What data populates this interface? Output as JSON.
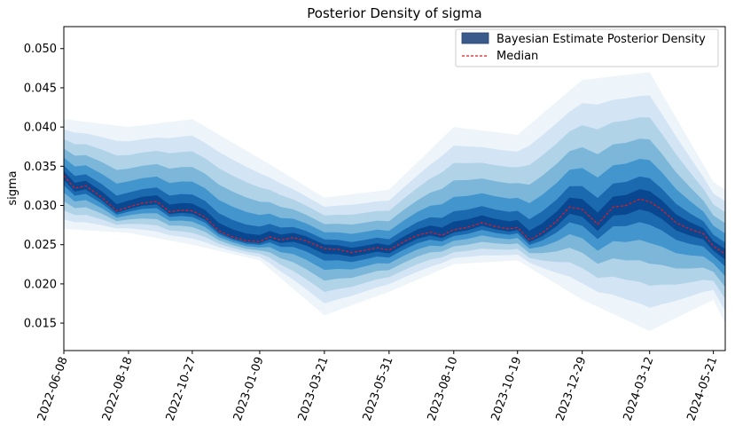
{
  "chart_data": {
    "type": "area",
    "title": "Posterior Density of sigma",
    "xlabel": "",
    "ylabel": "sigma",
    "x_tick_labels": [
      "2022-06-08",
      "2022-08-18",
      "2022-10-27",
      "2023-01-09",
      "2023-03-21",
      "2023-05-31",
      "2023-08-10",
      "2023-10-19",
      "2023-12-29",
      "2024-03-12",
      "2024-05-21"
    ],
    "x_range": [
      "2022-06-08",
      "2024-06-03"
    ],
    "y_ticks": [
      "0.015",
      "0.020",
      "0.025",
      "0.030",
      "0.035",
      "0.040",
      "0.045",
      "0.050"
    ],
    "y_tick_values": [
      0.015,
      0.02,
      0.025,
      0.03,
      0.035,
      0.04,
      0.045,
      0.05
    ],
    "ylim": [
      0.0115,
      0.0528
    ],
    "grid": false,
    "legend_position": "top-right",
    "legend": [
      {
        "label": "Bayesian Estimate Posterior Density",
        "kind": "patch",
        "color": "#3a5a8c"
      },
      {
        "label": "Median",
        "kind": "dashed-line",
        "color": "#e8181e"
      }
    ],
    "series": [
      {
        "name": "Median",
        "x": [
          "2022-06-08",
          "2022-06-20",
          "2022-07-02",
          "2022-07-20",
          "2022-08-05",
          "2022-08-18",
          "2022-09-02",
          "2022-09-18",
          "2022-10-02",
          "2022-10-15",
          "2022-10-27",
          "2022-11-10",
          "2022-11-25",
          "2022-12-10",
          "2022-12-25",
          "2023-01-09",
          "2023-01-20",
          "2023-02-01",
          "2023-02-15",
          "2023-03-01",
          "2023-03-21",
          "2023-04-05",
          "2023-04-20",
          "2023-05-05",
          "2023-05-18",
          "2023-05-31",
          "2023-06-15",
          "2023-07-01",
          "2023-07-15",
          "2023-07-28",
          "2023-08-10",
          "2023-08-25",
          "2023-09-10",
          "2023-09-25",
          "2023-10-10",
          "2023-10-19",
          "2023-11-01",
          "2023-11-15",
          "2023-12-01",
          "2023-12-15",
          "2023-12-29",
          "2024-01-15",
          "2024-02-01",
          "2024-02-15",
          "2024-03-01",
          "2024-03-12",
          "2024-03-25",
          "2024-04-10",
          "2024-04-25",
          "2024-05-10",
          "2024-05-21",
          "2024-06-03"
        ],
        "values": [
          0.0338,
          0.0322,
          0.0325,
          0.031,
          0.0293,
          0.0298,
          0.0303,
          0.0305,
          0.0292,
          0.0294,
          0.0293,
          0.0285,
          0.0268,
          0.026,
          0.0255,
          0.0254,
          0.026,
          0.0256,
          0.0259,
          0.0255,
          0.0245,
          0.0244,
          0.024,
          0.0243,
          0.0246,
          0.0243,
          0.0253,
          0.0262,
          0.0266,
          0.0262,
          0.0269,
          0.0272,
          0.0278,
          0.0273,
          0.027,
          0.0272,
          0.0256,
          0.0265,
          0.028,
          0.0298,
          0.0295,
          0.0276,
          0.0298,
          0.03,
          0.0308,
          0.0305,
          0.0295,
          0.0278,
          0.027,
          0.0264,
          0.0248,
          0.0238
        ],
        "style": "dashed"
      },
      {
        "name": "Bayesian Estimate Posterior Density",
        "x": [
          "2022-06-08",
          "2022-08-18",
          "2022-10-27",
          "2023-01-09",
          "2023-03-21",
          "2023-05-31",
          "2023-08-10",
          "2023-10-19",
          "2023-12-29",
          "2024-03-12",
          "2024-05-21",
          "2024-06-03"
        ],
        "lower_95": [
          0.027,
          0.0265,
          0.025,
          0.023,
          0.016,
          0.019,
          0.0225,
          0.023,
          0.018,
          0.014,
          0.018,
          0.015
        ],
        "upper_95": [
          0.041,
          0.04,
          0.041,
          0.036,
          0.031,
          0.032,
          0.04,
          0.039,
          0.046,
          0.047,
          0.033,
          0.032
        ]
      }
    ]
  }
}
